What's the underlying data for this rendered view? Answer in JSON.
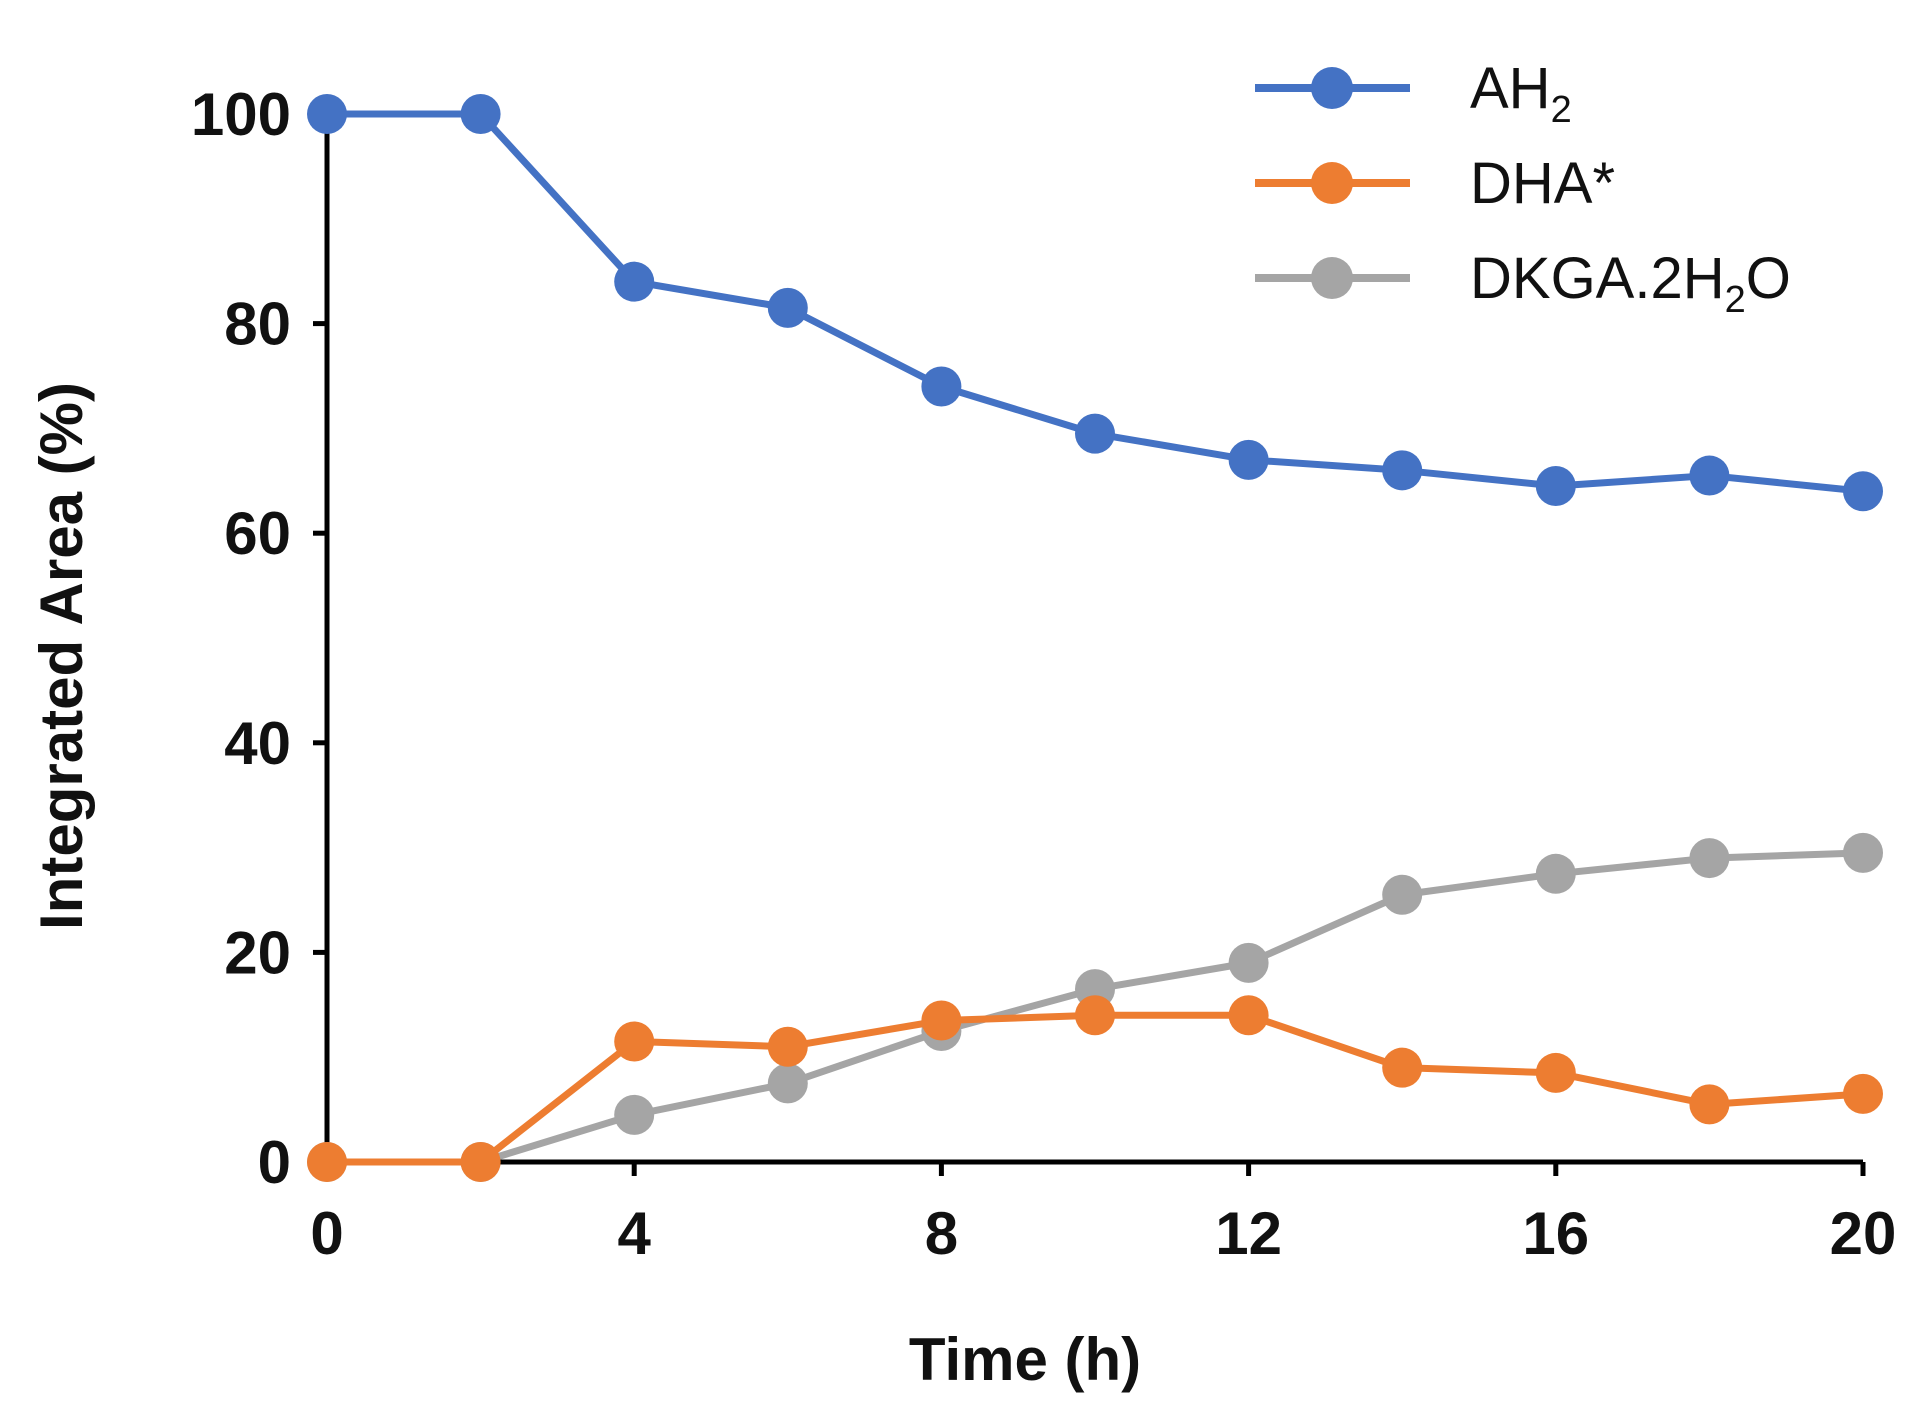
{
  "chart_data": {
    "type": "line",
    "title": "",
    "xlabel": "Time (h)",
    "ylabel": "Integrated Area (%)",
    "xlim": [
      0,
      20
    ],
    "ylim": [
      0,
      100
    ],
    "x_ticks": [
      0,
      4,
      8,
      12,
      16,
      20
    ],
    "y_ticks": [
      0,
      20,
      40,
      60,
      80,
      100
    ],
    "grid": false,
    "legend_position": "top-right",
    "x": [
      0,
      2,
      4,
      6,
      8,
      10,
      12,
      14,
      16,
      18,
      20
    ],
    "series": [
      {
        "name": "AH2",
        "label_main": "AH",
        "label_sub": "2",
        "label_tail": "",
        "color": "#4472C4",
        "values": [
          100,
          100,
          84,
          81.5,
          74,
          69.5,
          67,
          66,
          64.5,
          65.5,
          64
        ]
      },
      {
        "name": "DHA*",
        "label_main": "DHA*",
        "label_sub": "",
        "label_tail": "",
        "color": "#ED7D31",
        "values": [
          0,
          0,
          11.5,
          11,
          13.5,
          14,
          14,
          9,
          8.5,
          5.5,
          6.5
        ]
      },
      {
        "name": "DKGA.2H2O",
        "label_main": "DKGA.2H",
        "label_sub": "2",
        "label_tail": "O",
        "color": "#A5A5A5",
        "values": [
          0,
          0,
          4.5,
          7.5,
          12.5,
          16.5,
          19,
          25.5,
          27.5,
          29,
          29.5
        ]
      }
    ]
  }
}
